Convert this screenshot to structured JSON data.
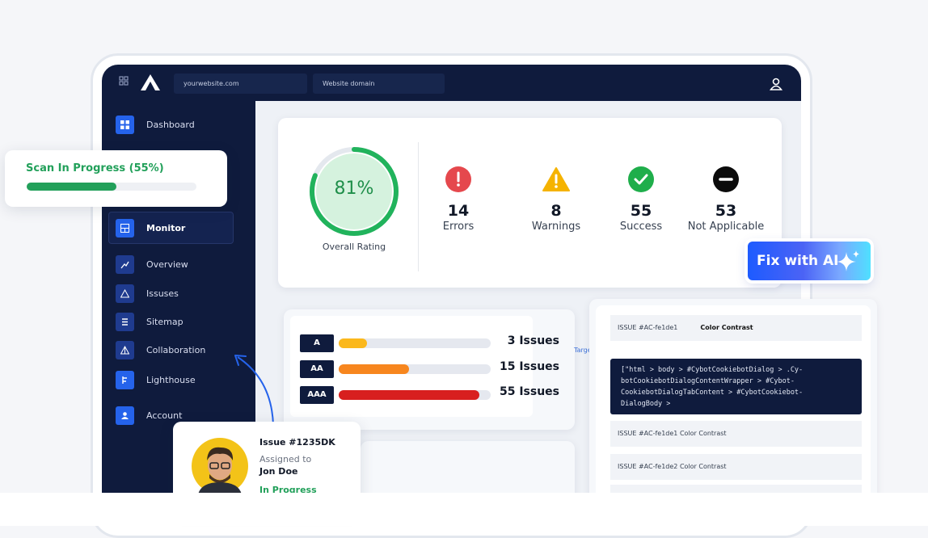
{
  "topbar": {
    "url_placeholder": "yourwebsite.com",
    "domain_placeholder": "Website domain"
  },
  "sidebar": {
    "items": [
      "Dashboard",
      "Monitor",
      "Overview",
      "Issuses",
      "Sitemap",
      "Collaboration",
      "Lighthouse",
      "Account"
    ]
  },
  "scan": {
    "label": "Scan In Progress (55%)"
  },
  "rating": {
    "value": "81%",
    "label": "Overall Rating"
  },
  "stats": [
    {
      "value": "14",
      "label": "Errors"
    },
    {
      "value": "8",
      "label": "Warnings"
    },
    {
      "value": "55",
      "label": "Success"
    },
    {
      "value": "53",
      "label": "Not Applicable"
    }
  ],
  "fix_button": "Fix with AI",
  "levels": [
    {
      "level": "A",
      "issues": "3 Issues"
    },
    {
      "level": "AA",
      "issues": "15 Issues"
    },
    {
      "level": "AAA",
      "issues": "55 Issues"
    }
  ],
  "target_label": "Target",
  "issue_panel": {
    "header_id": "ISSUE #AC-fe1de1",
    "header_type": "Color Contrast",
    "code": "[\"html > body > #CybotCookiebotDialog > .Cy-\nbotCookiebotDialogContentWrapper > #Cybot-\nCookiebotDialogTabContent > #CybotCookiebot-\nDialogBody >",
    "items": [
      "ISSUE #AC-fe1de1 Color Contrast",
      "ISSUE #AC-fe1de2 Color Contrast"
    ]
  },
  "assignment": {
    "issue": "Issue #1235DK",
    "assigned_label": "Assigned to",
    "assignee": "Jon Doe",
    "status": "In Progress"
  }
}
